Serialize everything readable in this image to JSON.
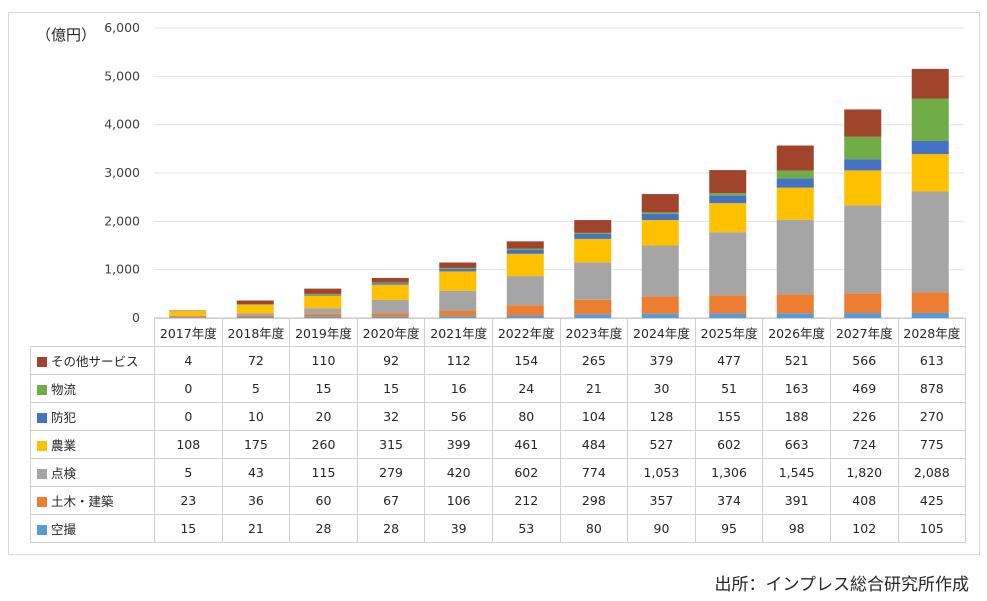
{
  "unit_label": "（億円）",
  "source": "出所：インプレス総合研究所作成",
  "colors": {
    "その他サービス": "#a0442c",
    "物流": "#70ad47",
    "防犯": "#4472c4",
    "農業": "#ffc000",
    "点検": "#a5a5a5",
    "土木・建築": "#ed7d31",
    "空撮": "#5b9bd5"
  },
  "chart_data": {
    "type": "bar",
    "stacked": true,
    "categories": [
      "2017年度",
      "2018年度",
      "2019年度",
      "2020年度",
      "2021年度",
      "2022年度",
      "2023年度",
      "2024年度",
      "2025年度",
      "2026年度",
      "2027年度",
      "2028年度"
    ],
    "yticks": [
      "0",
      "1,000",
      "2,000",
      "3,000",
      "4,000",
      "5,000",
      "6,000"
    ],
    "ylim": [
      0,
      6000
    ],
    "grid": true,
    "legend": "table below chart",
    "series": [
      {
        "name": "空撮",
        "values": [
          15,
          21,
          28,
          28,
          39,
          53,
          80,
          90,
          95,
          98,
          102,
          105
        ],
        "labels": [
          "15",
          "21",
          "28",
          "28",
          "39",
          "53",
          "80",
          "90",
          "95",
          "98",
          "102",
          "105"
        ]
      },
      {
        "name": "土木・建築",
        "values": [
          23,
          36,
          60,
          67,
          106,
          212,
          298,
          357,
          374,
          391,
          408,
          425
        ],
        "labels": [
          "23",
          "36",
          "60",
          "67",
          "106",
          "212",
          "298",
          "357",
          "374",
          "391",
          "408",
          "425"
        ]
      },
      {
        "name": "点検",
        "values": [
          5,
          43,
          115,
          279,
          420,
          602,
          774,
          1053,
          1306,
          1545,
          1820,
          2088
        ],
        "labels": [
          "5",
          "43",
          "115",
          "279",
          "420",
          "602",
          "774",
          "1,053",
          "1,306",
          "1,545",
          "1,820",
          "2,088"
        ]
      },
      {
        "name": "農業",
        "values": [
          108,
          175,
          260,
          315,
          399,
          461,
          484,
          527,
          602,
          663,
          724,
          775
        ],
        "labels": [
          "108",
          "175",
          "260",
          "315",
          "399",
          "461",
          "484",
          "527",
          "602",
          "663",
          "724",
          "775"
        ]
      },
      {
        "name": "防犯",
        "values": [
          0,
          10,
          20,
          32,
          56,
          80,
          104,
          128,
          155,
          188,
          226,
          270
        ],
        "labels": [
          "0",
          "10",
          "20",
          "32",
          "56",
          "80",
          "104",
          "128",
          "155",
          "188",
          "226",
          "270"
        ]
      },
      {
        "name": "物流",
        "values": [
          0,
          5,
          15,
          15,
          16,
          24,
          21,
          30,
          51,
          163,
          469,
          878
        ],
        "labels": [
          "0",
          "5",
          "15",
          "15",
          "16",
          "24",
          "21",
          "30",
          "51",
          "163",
          "469",
          "878"
        ]
      },
      {
        "name": "その他サービス",
        "values": [
          4,
          72,
          110,
          92,
          112,
          154,
          265,
          379,
          477,
          521,
          566,
          613
        ],
        "labels": [
          "4",
          "72",
          "110",
          "92",
          "112",
          "154",
          "265",
          "379",
          "477",
          "521",
          "566",
          "613"
        ]
      }
    ]
  }
}
